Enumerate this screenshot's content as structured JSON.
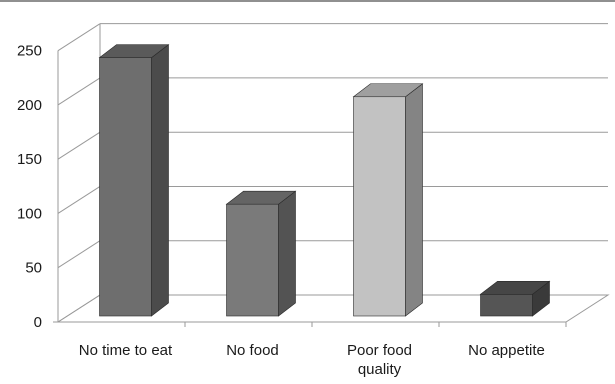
{
  "chart_data": {
    "type": "bar",
    "style": "3d-column",
    "categories": [
      [
        "No time to eat"
      ],
      [
        "No food"
      ],
      [
        "Poor food",
        "quality"
      ],
      [
        "No appetite"
      ]
    ],
    "values": [
      238,
      103,
      202,
      20
    ],
    "bar_colors": [
      "#6e6e6e",
      "#7a7a7a",
      "#c2c2c2",
      "#555555"
    ],
    "yticks": [
      "0",
      "50",
      "100",
      "150",
      "200",
      "250"
    ],
    "ylim": [
      0,
      250
    ],
    "grid": true,
    "legend": "none",
    "title": "",
    "xlabel": "",
    "ylabel": ""
  }
}
